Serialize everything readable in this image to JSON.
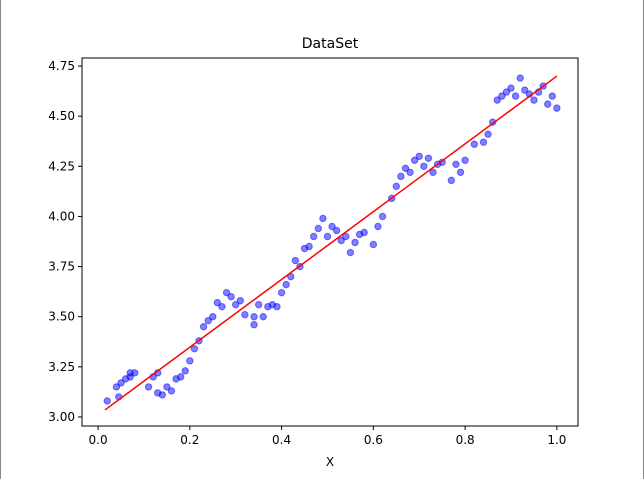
{
  "chart_data": {
    "type": "scatter",
    "title": "DataSet",
    "x_label": "X",
    "xlim": [
      -0.035,
      1.046
    ],
    "ylim": [
      2.955,
      4.79
    ],
    "xticks": [
      {
        "value": 0,
        "label": "0.0"
      },
      0.2,
      0.4,
      0.6,
      0.8,
      {
        "value": 1,
        "label": "1.0"
      }
    ],
    "yticks": [
      {
        "value": 3,
        "label": "3.00"
      },
      3.25,
      {
        "value": 3.5,
        "label": "3.50"
      },
      3.75,
      {
        "value": 4,
        "label": "4.00"
      },
      4.25,
      {
        "value": 4.5,
        "label": "4.50"
      },
      4.75
    ],
    "series": [
      {
        "type": "scatter",
        "color": "#0000ff",
        "x": [
          0.02,
          0.04,
          0.045,
          0.05,
          0.06,
          0.07,
          0.07,
          0.08,
          0.11,
          0.12,
          0.13,
          0.13,
          0.14,
          0.15,
          0.16,
          0.17,
          0.18,
          0.19,
          0.2,
          0.21,
          0.22,
          0.23,
          0.24,
          0.25,
          0.26,
          0.27,
          0.28,
          0.29,
          0.3,
          0.31,
          0.32,
          0.34,
          0.34,
          0.35,
          0.36,
          0.37,
          0.38,
          0.39,
          0.4,
          0.41,
          0.42,
          0.43,
          0.44,
          0.45,
          0.46,
          0.47,
          0.48,
          0.49,
          0.5,
          0.51,
          0.52,
          0.53,
          0.54,
          0.55,
          0.56,
          0.57,
          0.58,
          0.6,
          0.61,
          0.62,
          0.64,
          0.65,
          0.66,
          0.67,
          0.68,
          0.69,
          0.7,
          0.71,
          0.72,
          0.73,
          0.74,
          0.75,
          0.77,
          0.78,
          0.79,
          0.8,
          0.82,
          0.84,
          0.85,
          0.86,
          0.87,
          0.88,
          0.89,
          0.9,
          0.91,
          0.92,
          0.93,
          0.94,
          0.95,
          0.96,
          0.97,
          0.98,
          0.99,
          1.0
        ],
        "values": [
          3.08,
          3.15,
          3.1,
          3.17,
          3.19,
          3.22,
          3.2,
          3.22,
          3.15,
          3.2,
          3.22,
          3.12,
          3.11,
          3.15,
          3.13,
          3.19,
          3.2,
          3.23,
          3.28,
          3.34,
          3.38,
          3.45,
          3.48,
          3.5,
          3.57,
          3.55,
          3.62,
          3.6,
          3.56,
          3.58,
          3.51,
          3.46,
          3.5,
          3.56,
          3.5,
          3.55,
          3.56,
          3.55,
          3.62,
          3.66,
          3.7,
          3.78,
          3.75,
          3.84,
          3.85,
          3.9,
          3.94,
          3.99,
          3.9,
          3.95,
          3.93,
          3.88,
          3.9,
          3.82,
          3.87,
          3.91,
          3.92,
          3.86,
          3.95,
          4.0,
          4.09,
          4.15,
          4.2,
          4.24,
          4.22,
          4.28,
          4.3,
          4.25,
          4.29,
          4.22,
          4.26,
          4.27,
          4.18,
          4.26,
          4.22,
          4.28,
          4.36,
          4.37,
          4.41,
          4.47,
          4.58,
          4.6,
          4.62,
          4.64,
          4.6,
          4.69,
          4.63,
          4.61,
          4.58,
          4.62,
          4.65,
          4.56,
          4.6,
          4.54
        ]
      },
      {
        "type": "line",
        "color": "#ff0000",
        "x": [
          0.015,
          1.0
        ],
        "values": [
          3.035,
          4.7
        ]
      }
    ]
  }
}
